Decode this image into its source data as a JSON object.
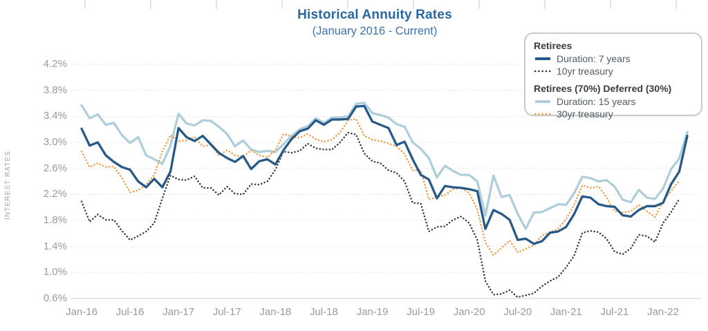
{
  "title": "Historical Annuity Rates",
  "subtitle": "(January 2016 - Current)",
  "y_axis_title": "INTEREST RATES",
  "legend": {
    "groups": [
      {
        "title": "Retirees",
        "items": [
          {
            "label": "Duration: 7 years",
            "style": "solid",
            "color": "#275988"
          },
          {
            "label": "10yr treasury",
            "style": "dotted",
            "color": "#3a3a3a"
          }
        ]
      },
      {
        "title": "Retirees (70%) Deferred (30%)",
        "items": [
          {
            "label": "Duration: 15 years",
            "style": "solid",
            "color": "#aecfda"
          },
          {
            "label": "30yr treasury",
            "style": "dotted",
            "color": "#ef9a44"
          }
        ]
      }
    ]
  },
  "colors": {
    "title_text": "#28679f",
    "subtitle_text": "#3a74ab",
    "axis_text": "#9a9a9a",
    "gridline": "#e1e1e1",
    "baseline": "#d6d6d6",
    "duration7": "#275988",
    "treasury10": "#3a3a3a",
    "duration15": "#aecfda",
    "treasury30": "#ef9a44"
  },
  "chart_data": {
    "type": "line",
    "title": "Historical Annuity Rates",
    "subtitle": "(January 2016 - Current)",
    "xlabel": "",
    "ylabel": "INTEREST RATES",
    "x_start_month": "Jan-2016",
    "x_frequency": "monthly",
    "x_tick_labels": [
      "Jan-16",
      "Jul-16",
      "Jan-17",
      "Jul-17",
      "Jan-18",
      "Jul-18",
      "Jan-19",
      "Jul-19",
      "Jan-20",
      "Jul-20",
      "Jan-21",
      "Jul-21",
      "Jan-22"
    ],
    "y_tick_labels": [
      "4.2%",
      "3.8%",
      "3.4%",
      "3.0%",
      "2.6%",
      "2.2%",
      "1.8%",
      "1.4%",
      "1.0%",
      "0.6%"
    ],
    "ylim": [
      0.6,
      4.2
    ],
    "y_step": 0.4,
    "grid": "horizontal-dashed",
    "legend_position": "top-right",
    "series": [
      {
        "name": "Duration: 7 years",
        "group": "Retirees",
        "style": "solid",
        "color": "#275988",
        "values": [
          3.21,
          2.95,
          3.0,
          2.8,
          2.7,
          2.62,
          2.58,
          2.4,
          2.31,
          2.44,
          2.31,
          2.55,
          3.22,
          3.08,
          3.02,
          3.1,
          2.97,
          2.84,
          2.76,
          2.7,
          2.79,
          2.59,
          2.71,
          2.74,
          2.66,
          2.88,
          3.05,
          3.17,
          3.21,
          3.34,
          3.27,
          3.35,
          3.35,
          3.36,
          3.55,
          3.56,
          3.32,
          3.27,
          3.22,
          2.96,
          3.01,
          2.74,
          2.5,
          2.43,
          2.14,
          2.33,
          2.31,
          2.3,
          2.28,
          2.25,
          1.67,
          1.96,
          1.9,
          1.81,
          1.5,
          1.52,
          1.44,
          1.48,
          1.61,
          1.63,
          1.7,
          1.9,
          2.17,
          2.15,
          2.05,
          2.02,
          2.01,
          1.88,
          1.86,
          1.96,
          2.02,
          2.02,
          2.07,
          2.36,
          2.55,
          3.1
        ]
      },
      {
        "name": "10yr treasury",
        "group": "Retirees",
        "style": "dotted",
        "color": "#3a3a3a",
        "values": [
          2.09,
          1.78,
          1.89,
          1.81,
          1.81,
          1.64,
          1.5,
          1.56,
          1.63,
          1.76,
          2.14,
          2.49,
          2.43,
          2.42,
          2.48,
          2.3,
          2.3,
          2.19,
          2.32,
          2.21,
          2.2,
          2.36,
          2.35,
          2.4,
          2.58,
          2.86,
          2.84,
          2.87,
          2.98,
          2.91,
          2.89,
          2.89,
          3.0,
          3.15,
          3.12,
          2.83,
          2.71,
          2.68,
          2.57,
          2.53,
          2.4,
          2.07,
          2.06,
          1.63,
          1.7,
          1.71,
          1.81,
          1.86,
          1.76,
          1.5,
          0.87,
          0.66,
          0.67,
          0.73,
          0.62,
          0.65,
          0.68,
          0.79,
          0.87,
          0.93,
          1.08,
          1.26,
          1.61,
          1.64,
          1.62,
          1.52,
          1.32,
          1.28,
          1.37,
          1.58,
          1.56,
          1.47,
          1.76,
          1.93,
          2.13
        ]
      },
      {
        "name": "Duration: 15 years",
        "group": "Retirees (70%) Deferred (30%)",
        "style": "solid",
        "color": "#aecfda",
        "values": [
          3.57,
          3.37,
          3.43,
          3.27,
          3.3,
          3.11,
          2.99,
          3.08,
          2.8,
          2.74,
          2.67,
          2.95,
          3.44,
          3.29,
          3.26,
          3.34,
          3.33,
          3.24,
          3.13,
          2.94,
          3.03,
          2.89,
          2.85,
          2.87,
          2.85,
          2.97,
          3.1,
          3.2,
          3.25,
          3.37,
          3.3,
          3.38,
          3.38,
          3.4,
          3.59,
          3.61,
          3.45,
          3.42,
          3.38,
          3.28,
          3.24,
          3.0,
          2.9,
          2.76,
          2.46,
          2.64,
          2.56,
          2.5,
          2.5,
          2.4,
          1.87,
          2.49,
          2.16,
          2.19,
          1.9,
          1.67,
          1.92,
          1.93,
          1.99,
          2.05,
          2.04,
          2.22,
          2.47,
          2.45,
          2.4,
          2.42,
          2.32,
          2.12,
          2.08,
          2.27,
          2.15,
          2.13,
          2.29,
          2.59,
          2.75,
          3.16
        ]
      },
      {
        "name": "30yr treasury",
        "group": "Retirees (70%) Deferred (30%)",
        "style": "dotted",
        "color": "#ef9a44",
        "values": [
          2.86,
          2.62,
          2.68,
          2.62,
          2.63,
          2.45,
          2.23,
          2.26,
          2.35,
          2.5,
          2.86,
          3.11,
          3.02,
          3.03,
          3.08,
          2.94,
          2.96,
          2.8,
          2.88,
          2.8,
          2.78,
          2.88,
          2.8,
          2.77,
          2.88,
          3.13,
          3.09,
          3.07,
          3.13,
          3.05,
          3.01,
          3.04,
          3.15,
          3.34,
          3.36,
          3.1,
          3.04,
          3.02,
          2.98,
          2.94,
          2.82,
          2.57,
          2.57,
          2.12,
          2.16,
          2.19,
          2.28,
          2.3,
          2.22,
          1.97,
          1.46,
          1.27,
          1.38,
          1.49,
          1.31,
          1.36,
          1.42,
          1.57,
          1.62,
          1.67,
          1.82,
          2.04,
          2.34,
          2.3,
          2.32,
          2.16,
          1.94,
          1.92,
          1.94,
          2.04,
          1.94,
          1.85,
          2.1,
          2.25,
          2.41
        ]
      }
    ]
  }
}
